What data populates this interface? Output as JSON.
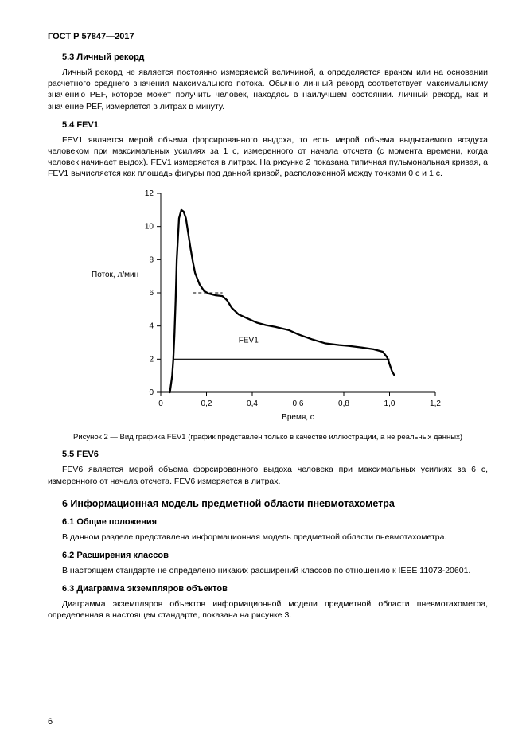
{
  "doc_id": "ГОСТ Р 57847—2017",
  "sec53": {
    "heading": "5.3 Личный рекорд",
    "p1": "Личный рекорд не является постоянно измеряемой величиной, а определяется врачом или на основании расчетного среднего значения максимального потока. Обычно личный рекорд соответствует максимальному значению PEF, которое может получить человек, находясь в наилучшем состоянии. Личный рекорд, как и значение PEF, измеряется в литрах в минуту."
  },
  "sec54": {
    "heading": "5.4 FEV1",
    "p1": "FEV1 является мерой объема форсированного выдоха, то есть мерой объема выдыхаемого воздуха человеком при максимальных усилиях за 1 с, измеренного от начала отсчета (с момента времени, когда человек начинает выдох). FEV1 измеряется в литрах. На рисунке 2 показана типичная пульмональная кривая, а FEV1 вычисляется как площадь фигуры под данной кривой, расположенной между точками 0 с и 1 с."
  },
  "fig2_caption": "Рисунок 2 — Вид графика FEV1 (график представлен только в качестве иллюстрации, а не реальных данных)",
  "sec55": {
    "heading": "5.5 FEV6",
    "p1": "FEV6 является мерой объема форсированного выдоха человека при максимальных усилиях за 6 с, измеренного от начала отсчета. FEV6 измеряется в литрах."
  },
  "sec6": {
    "heading": "6 Информационная модель предметной области пневмотахометра"
  },
  "sec61": {
    "heading": "6.1 Общие положения",
    "p1": "В данном разделе представлена информационная модель предметной области пневмотахометра."
  },
  "sec62": {
    "heading": "6.2 Расширения классов",
    "p1": "В настоящем стандарте не определено никаких расширений классов по отношению к IEEE 11073-20601."
  },
  "sec63": {
    "heading": "6.3 Диаграмма экземпляров объектов",
    "p1": "Диаграмма экземпляров объектов информационной модели предметной области пневмотахометра, определенная в настоящем стандарте, показана на рисунке 3."
  },
  "page_number": "6",
  "chart": {
    "type": "line",
    "ylabel": "Поток, л/мин",
    "xlabel": "Время, с",
    "fev1_label": "FEV1",
    "x_ticks": [
      0,
      0.2,
      0.4,
      0.6,
      0.8,
      1.0,
      1.2
    ],
    "x_tick_labels": [
      "0",
      "0,2",
      "0,4",
      "0,6",
      "0,8",
      "1,0",
      "1,2"
    ],
    "y_ticks": [
      0,
      2,
      4,
      6,
      8,
      10,
      12
    ],
    "xlim": [
      0,
      1.2
    ],
    "ylim": [
      0,
      12
    ],
    "curve_color": "#000000",
    "curve_width": 2.3,
    "fill_color": "none",
    "baseline_y": 2,
    "dash_tick_len": 14,
    "data_points": [
      [
        0.04,
        0.0
      ],
      [
        0.05,
        1.0
      ],
      [
        0.055,
        2.0
      ],
      [
        0.06,
        3.5
      ],
      [
        0.065,
        5.5
      ],
      [
        0.07,
        8.0
      ],
      [
        0.08,
        10.5
      ],
      [
        0.09,
        11.0
      ],
      [
        0.1,
        10.9
      ],
      [
        0.11,
        10.5
      ],
      [
        0.12,
        9.6
      ],
      [
        0.13,
        8.7
      ],
      [
        0.14,
        7.9
      ],
      [
        0.15,
        7.2
      ],
      [
        0.17,
        6.5
      ],
      [
        0.19,
        6.1
      ],
      [
        0.21,
        5.95
      ],
      [
        0.24,
        5.85
      ],
      [
        0.27,
        5.8
      ],
      [
        0.29,
        5.55
      ],
      [
        0.31,
        5.1
      ],
      [
        0.34,
        4.7
      ],
      [
        0.38,
        4.45
      ],
      [
        0.42,
        4.2
      ],
      [
        0.46,
        4.05
      ],
      [
        0.5,
        3.95
      ],
      [
        0.56,
        3.75
      ],
      [
        0.6,
        3.5
      ],
      [
        0.66,
        3.2
      ],
      [
        0.72,
        2.95
      ],
      [
        0.78,
        2.85
      ],
      [
        0.82,
        2.8
      ],
      [
        0.88,
        2.7
      ],
      [
        0.93,
        2.6
      ],
      [
        0.97,
        2.45
      ],
      [
        0.99,
        2.1
      ],
      [
        1.0,
        1.7
      ],
      [
        1.01,
        1.3
      ],
      [
        1.02,
        1.05
      ]
    ],
    "dash_markers_y": [
      2,
      6
    ],
    "axis_color": "#000000",
    "tick_font_size": 10,
    "label_font_size": 10
  }
}
